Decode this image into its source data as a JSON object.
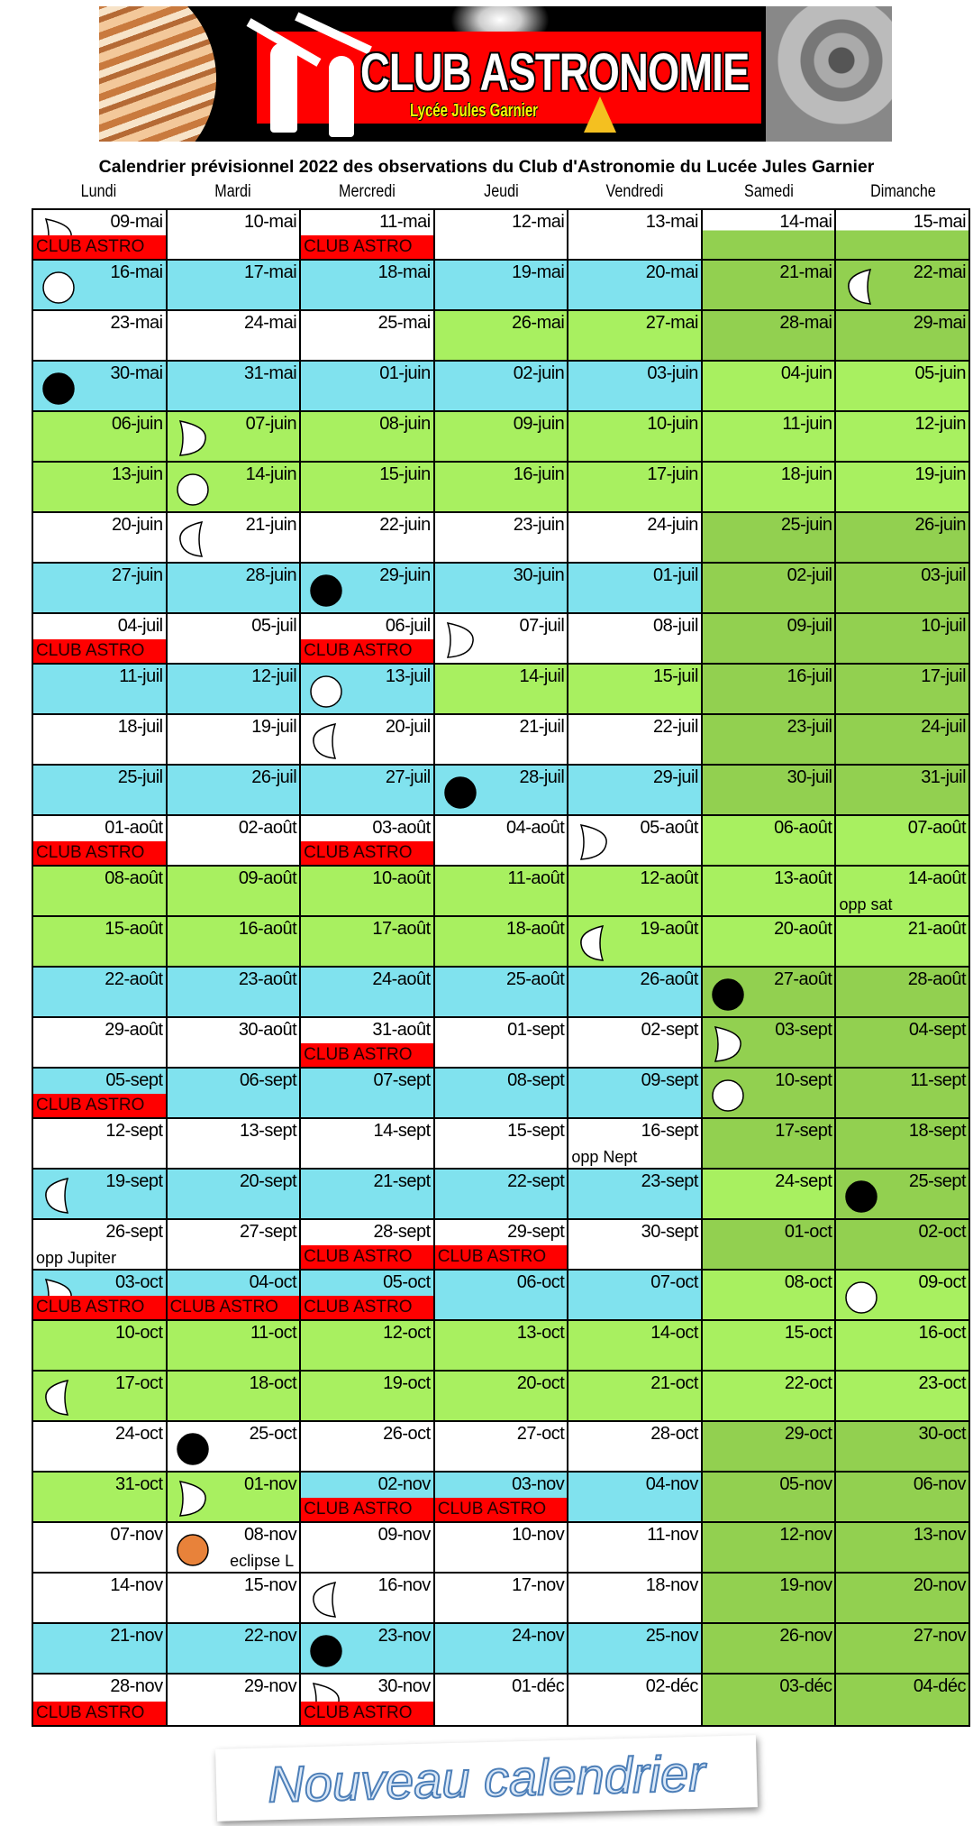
{
  "logo": {
    "title": "CLUB ASTRONOMIE",
    "subtitle": "Lycée Jules Garnier"
  },
  "title": "Calendrier prévisionnel 2022 des observations du Club d'Astronomie du Lucée Jules Garnier",
  "weekdays": [
    "Lundi",
    "Mardi",
    "Mercredi",
    "Jeudi",
    "Vendredi",
    "Samedi",
    "Dimanche"
  ],
  "club_label": "CLUB ASTRO",
  "stamp": "Nouveau calendrier",
  "colors": {
    "W": "#ffffff",
    "C": "#80e2ee",
    "L": "#a8f060",
    "D": "#92d050",
    "club": "#ff0000",
    "eclipse": "#e8823a"
  },
  "rows": [
    {
      "dates": [
        "09-mai",
        "10-mai",
        "11-mai",
        "12-mai",
        "13-mai",
        "14-mai",
        "15-mai"
      ],
      "fill": "WWWWWXX"
    },
    {
      "dates": [
        "16-mai",
        "17-mai",
        "18-mai",
        "19-mai",
        "20-mai",
        "21-mai",
        "22-mai"
      ],
      "fill": "CCCCCDD"
    },
    {
      "dates": [
        "23-mai",
        "24-mai",
        "25-mai",
        "26-mai",
        "27-mai",
        "28-mai",
        "29-mai"
      ],
      "fill": "WWWLLDD"
    },
    {
      "dates": [
        "30-mai",
        "31-mai",
        "01-juin",
        "02-juin",
        "03-juin",
        "04-juin",
        "05-juin"
      ],
      "fill": "CCCCCLL"
    },
    {
      "dates": [
        "06-juin",
        "07-juin",
        "08-juin",
        "09-juin",
        "10-juin",
        "11-juin",
        "12-juin"
      ],
      "fill": "LLLLLLL"
    },
    {
      "dates": [
        "13-juin",
        "14-juin",
        "15-juin",
        "16-juin",
        "17-juin",
        "18-juin",
        "19-juin"
      ],
      "fill": "LLLLLLL"
    },
    {
      "dates": [
        "20-juin",
        "21-juin",
        "22-juin",
        "23-juin",
        "24-juin",
        "25-juin",
        "26-juin"
      ],
      "fill": "WWWWWDD"
    },
    {
      "dates": [
        "27-juin",
        "28-juin",
        "29-juin",
        "30-juin",
        "01-juil",
        "02-juil",
        "03-juil"
      ],
      "fill": "CCCCCDD"
    },
    {
      "dates": [
        "04-juil",
        "05-juil",
        "06-juil",
        "07-juil",
        "08-juil",
        "09-juil",
        "10-juil"
      ],
      "fill": "WWWWWDD"
    },
    {
      "dates": [
        "11-juil",
        "12-juil",
        "13-juil",
        "14-juil",
        "15-juil",
        "16-juil",
        "17-juil"
      ],
      "fill": "CCCLLDD"
    },
    {
      "dates": [
        "18-juil",
        "19-juil",
        "20-juil",
        "21-juil",
        "22-juil",
        "23-juil",
        "24-juil"
      ],
      "fill": "WWWWWDD"
    },
    {
      "dates": [
        "25-juil",
        "26-juil",
        "27-juil",
        "28-juil",
        "29-juil",
        "30-juil",
        "31-juil"
      ],
      "fill": "CCCCCDD"
    },
    {
      "dates": [
        "01-août",
        "02-août",
        "03-août",
        "04-août",
        "05-août",
        "06-août",
        "07-août"
      ],
      "fill": "WWWWWLL"
    },
    {
      "dates": [
        "08-août",
        "09-août",
        "10-août",
        "11-août",
        "12-août",
        "13-août",
        "14-août"
      ],
      "fill": "LLLLLLL"
    },
    {
      "dates": [
        "15-août",
        "16-août",
        "17-août",
        "18-août",
        "19-août",
        "20-août",
        "21-août"
      ],
      "fill": "LLLLLLL"
    },
    {
      "dates": [
        "22-août",
        "23-août",
        "24-août",
        "25-août",
        "26-août",
        "27-août",
        "28-août"
      ],
      "fill": "CCCCCDD"
    },
    {
      "dates": [
        "29-août",
        "30-août",
        "31-août",
        "01-sept",
        "02-sept",
        "03-sept",
        "04-sept"
      ],
      "fill": "WWWWWDD"
    },
    {
      "dates": [
        "05-sept",
        "06-sept",
        "07-sept",
        "08-sept",
        "09-sept",
        "10-sept",
        "11-sept"
      ],
      "fill": "CCCCCDD"
    },
    {
      "dates": [
        "12-sept",
        "13-sept",
        "14-sept",
        "15-sept",
        "16-sept",
        "17-sept",
        "18-sept"
      ],
      "fill": "WWWWWDD"
    },
    {
      "dates": [
        "19-sept",
        "20-sept",
        "21-sept",
        "22-sept",
        "23-sept",
        "24-sept",
        "25-sept"
      ],
      "fill": "CCCCCLD"
    },
    {
      "dates": [
        "26-sept",
        "27-sept",
        "28-sept",
        "29-sept",
        "30-sept",
        "01-oct",
        "02-oct"
      ],
      "fill": "WWWWWDD"
    },
    {
      "dates": [
        "03-oct",
        "04-oct",
        "05-oct",
        "06-oct",
        "07-oct",
        "08-oct",
        "09-oct"
      ],
      "fill": "CCCCCLL"
    },
    {
      "dates": [
        "10-oct",
        "11-oct",
        "12-oct",
        "13-oct",
        "14-oct",
        "15-oct",
        "16-oct"
      ],
      "fill": "LLLLLLL"
    },
    {
      "dates": [
        "17-oct",
        "18-oct",
        "19-oct",
        "20-oct",
        "21-oct",
        "22-oct",
        "23-oct"
      ],
      "fill": "LLLLLLL"
    },
    {
      "dates": [
        "24-oct",
        "25-oct",
        "26-oct",
        "27-oct",
        "28-oct",
        "29-oct",
        "30-oct"
      ],
      "fill": "WWWWWDD"
    },
    {
      "dates": [
        "31-oct",
        "01-nov",
        "02-nov",
        "03-nov",
        "04-nov",
        "05-nov",
        "06-nov"
      ],
      "fill": "LLCCCDD"
    },
    {
      "dates": [
        "07-nov",
        "08-nov",
        "09-nov",
        "10-nov",
        "11-nov",
        "12-nov",
        "13-nov"
      ],
      "fill": "WWWWWDD"
    },
    {
      "dates": [
        "14-nov",
        "15-nov",
        "16-nov",
        "17-nov",
        "18-nov",
        "19-nov",
        "20-nov"
      ],
      "fill": "WWWWWDD"
    },
    {
      "dates": [
        "21-nov",
        "22-nov",
        "23-nov",
        "24-nov",
        "25-nov",
        "26-nov",
        "27-nov"
      ],
      "fill": "CCCCCDD"
    },
    {
      "dates": [
        "28-nov",
        "29-nov",
        "30-nov",
        "01-déc",
        "02-déc",
        "03-déc",
        "04-déc"
      ],
      "fill": "WWWWWDD"
    }
  ],
  "club_days": [
    "09-mai",
    "11-mai",
    "04-juil",
    "06-juil",
    "01-août",
    "03-août",
    "31-août",
    "05-sept",
    "28-sept",
    "29-sept",
    "03-oct",
    "04-oct",
    "05-oct",
    "02-nov",
    "03-nov",
    "28-nov",
    "30-nov"
  ],
  "moon_phases": [
    {
      "date": "09-mai",
      "phase": "first-quarter"
    },
    {
      "date": "16-mai",
      "phase": "full"
    },
    {
      "date": "22-mai",
      "phase": "last-quarter"
    },
    {
      "date": "30-mai",
      "phase": "new"
    },
    {
      "date": "07-juin",
      "phase": "first-quarter"
    },
    {
      "date": "14-juin",
      "phase": "full"
    },
    {
      "date": "21-juin",
      "phase": "last-quarter"
    },
    {
      "date": "29-juin",
      "phase": "new"
    },
    {
      "date": "07-juil",
      "phase": "first-quarter"
    },
    {
      "date": "13-juil",
      "phase": "full"
    },
    {
      "date": "20-juil",
      "phase": "last-quarter"
    },
    {
      "date": "28-juil",
      "phase": "new"
    },
    {
      "date": "05-août",
      "phase": "first-quarter"
    },
    {
      "date": "19-août",
      "phase": "last-quarter"
    },
    {
      "date": "27-août",
      "phase": "new"
    },
    {
      "date": "03-sept",
      "phase": "first-quarter"
    },
    {
      "date": "10-sept",
      "phase": "full"
    },
    {
      "date": "19-sept",
      "phase": "last-quarter"
    },
    {
      "date": "25-sept",
      "phase": "new"
    },
    {
      "date": "03-oct",
      "phase": "first-quarter"
    },
    {
      "date": "09-oct",
      "phase": "full"
    },
    {
      "date": "17-oct",
      "phase": "last-quarter"
    },
    {
      "date": "25-oct",
      "phase": "new"
    },
    {
      "date": "01-nov",
      "phase": "first-quarter"
    },
    {
      "date": "08-nov",
      "phase": "eclipse"
    },
    {
      "date": "16-nov",
      "phase": "last-quarter"
    },
    {
      "date": "23-nov",
      "phase": "new"
    },
    {
      "date": "30-nov",
      "phase": "first-quarter"
    }
  ],
  "notes": [
    {
      "date": "14-août",
      "text": "opp sat"
    },
    {
      "date": "16-sept",
      "text": "opp Nept"
    },
    {
      "date": "26-sept",
      "text": "opp Jupiter"
    },
    {
      "date": "08-nov",
      "text": "eclipse L",
      "align": "right"
    }
  ]
}
